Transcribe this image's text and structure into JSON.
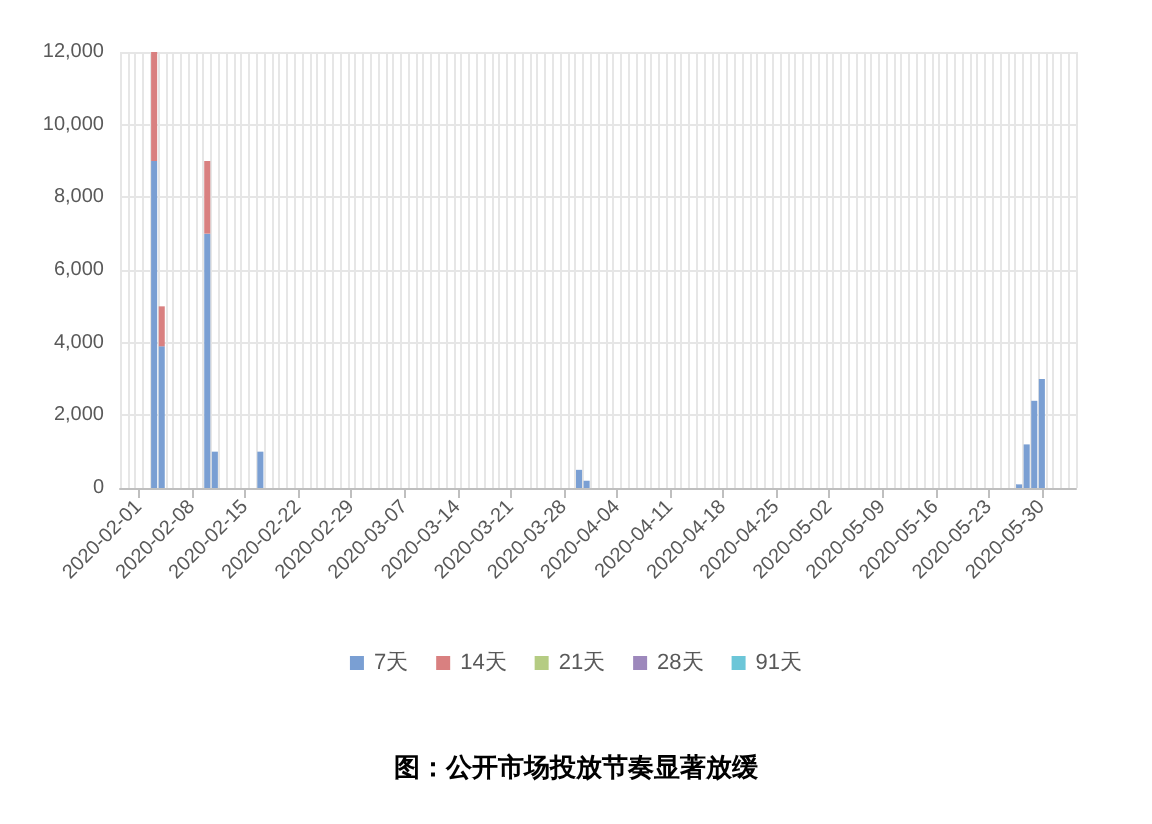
{
  "chart_data": {
    "type": "bar",
    "title": "图：公开市场投放节奏显著放缓",
    "stacked": true,
    "x": [
      "2020-02-03",
      "2020-02-04",
      "2020-02-10",
      "2020-02-11",
      "2020-02-17",
      "2020-03-30",
      "2020-03-31",
      "2020-05-27",
      "2020-05-28",
      "2020-05-29",
      "2020-05-30"
    ],
    "series": [
      {
        "name": "7天",
        "color": "#7a9fd3",
        "values": [
          9000,
          3900,
          7000,
          1000,
          1000,
          500,
          200,
          100,
          1200,
          2400,
          3000
        ]
      },
      {
        "name": "14天",
        "color": "#d98080",
        "values": [
          3000,
          1100,
          2000,
          null,
          null,
          null,
          null,
          null,
          null,
          null,
          null
        ]
      },
      {
        "name": "21天",
        "color": "#b5cc83",
        "values": [
          null,
          null,
          null,
          null,
          null,
          null,
          null,
          null,
          null,
          null,
          null
        ]
      },
      {
        "name": "28天",
        "color": "#9d88bc",
        "values": [
          null,
          null,
          null,
          null,
          null,
          null,
          null,
          null,
          null,
          null,
          null
        ]
      },
      {
        "name": "91天",
        "color": "#6cc6d8",
        "values": [
          null,
          null,
          null,
          null,
          null,
          null,
          null,
          null,
          null,
          null,
          null
        ]
      }
    ],
    "xlim": [
      "2020-01-30",
      "2020-06-03"
    ],
    "xticks": [
      "2020-02-01",
      "2020-02-08",
      "2020-02-15",
      "2020-02-22",
      "2020-02-29",
      "2020-03-07",
      "2020-03-14",
      "2020-03-21",
      "2020-03-28",
      "2020-04-04",
      "2020-04-11",
      "2020-04-18",
      "2020-04-25",
      "2020-05-02",
      "2020-05-09",
      "2020-05-16",
      "2020-05-23",
      "2020-05-30"
    ],
    "ylim": [
      0,
      12000
    ],
    "yticks": [
      0,
      {
        "value": 2000,
        "label": "2,000"
      },
      {
        "value": 4000,
        "label": "4,000"
      },
      {
        "value": 6000,
        "label": "6,000"
      },
      {
        "value": 8000,
        "label": "8,000"
      },
      {
        "value": 10000,
        "label": "10,000"
      },
      {
        "value": 12000,
        "label": "12,000"
      }
    ],
    "grid": true,
    "legend": "bottom"
  }
}
